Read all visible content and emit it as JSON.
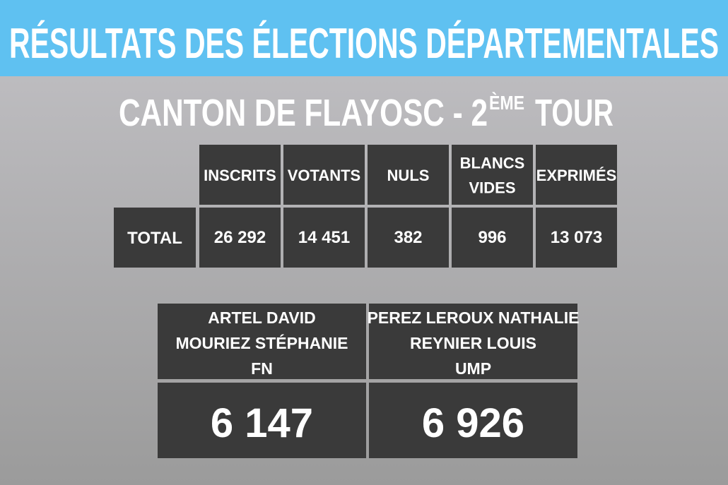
{
  "header": {
    "title": "RÉSULTATS DES ÉLECTIONS DÉPARTEMENTALES"
  },
  "subtitle": {
    "main": "CANTON DE FLAYOSC - 2",
    "sup": "ÈME",
    "tail": "TOUR"
  },
  "table": {
    "columns": [
      [
        "INSCRITS"
      ],
      [
        "VOTANTS"
      ],
      [
        "NULS"
      ],
      [
        "BLANCS",
        "VIDES"
      ],
      [
        "EXPRIMÉS"
      ]
    ],
    "row_label": "TOTAL",
    "row": [
      "26 292",
      "14 451",
      "382",
      "996",
      "13 073"
    ]
  },
  "candidates": [
    {
      "lines": [
        "ARTEL DAVID",
        "MOURIEZ STÉPHANIE",
        "FN"
      ],
      "result": "6 147"
    },
    {
      "lines": [
        "PEREZ LEROUX NATHALIE",
        "REYNIER LOUIS",
        "UMP"
      ],
      "result": "6 926"
    }
  ]
}
